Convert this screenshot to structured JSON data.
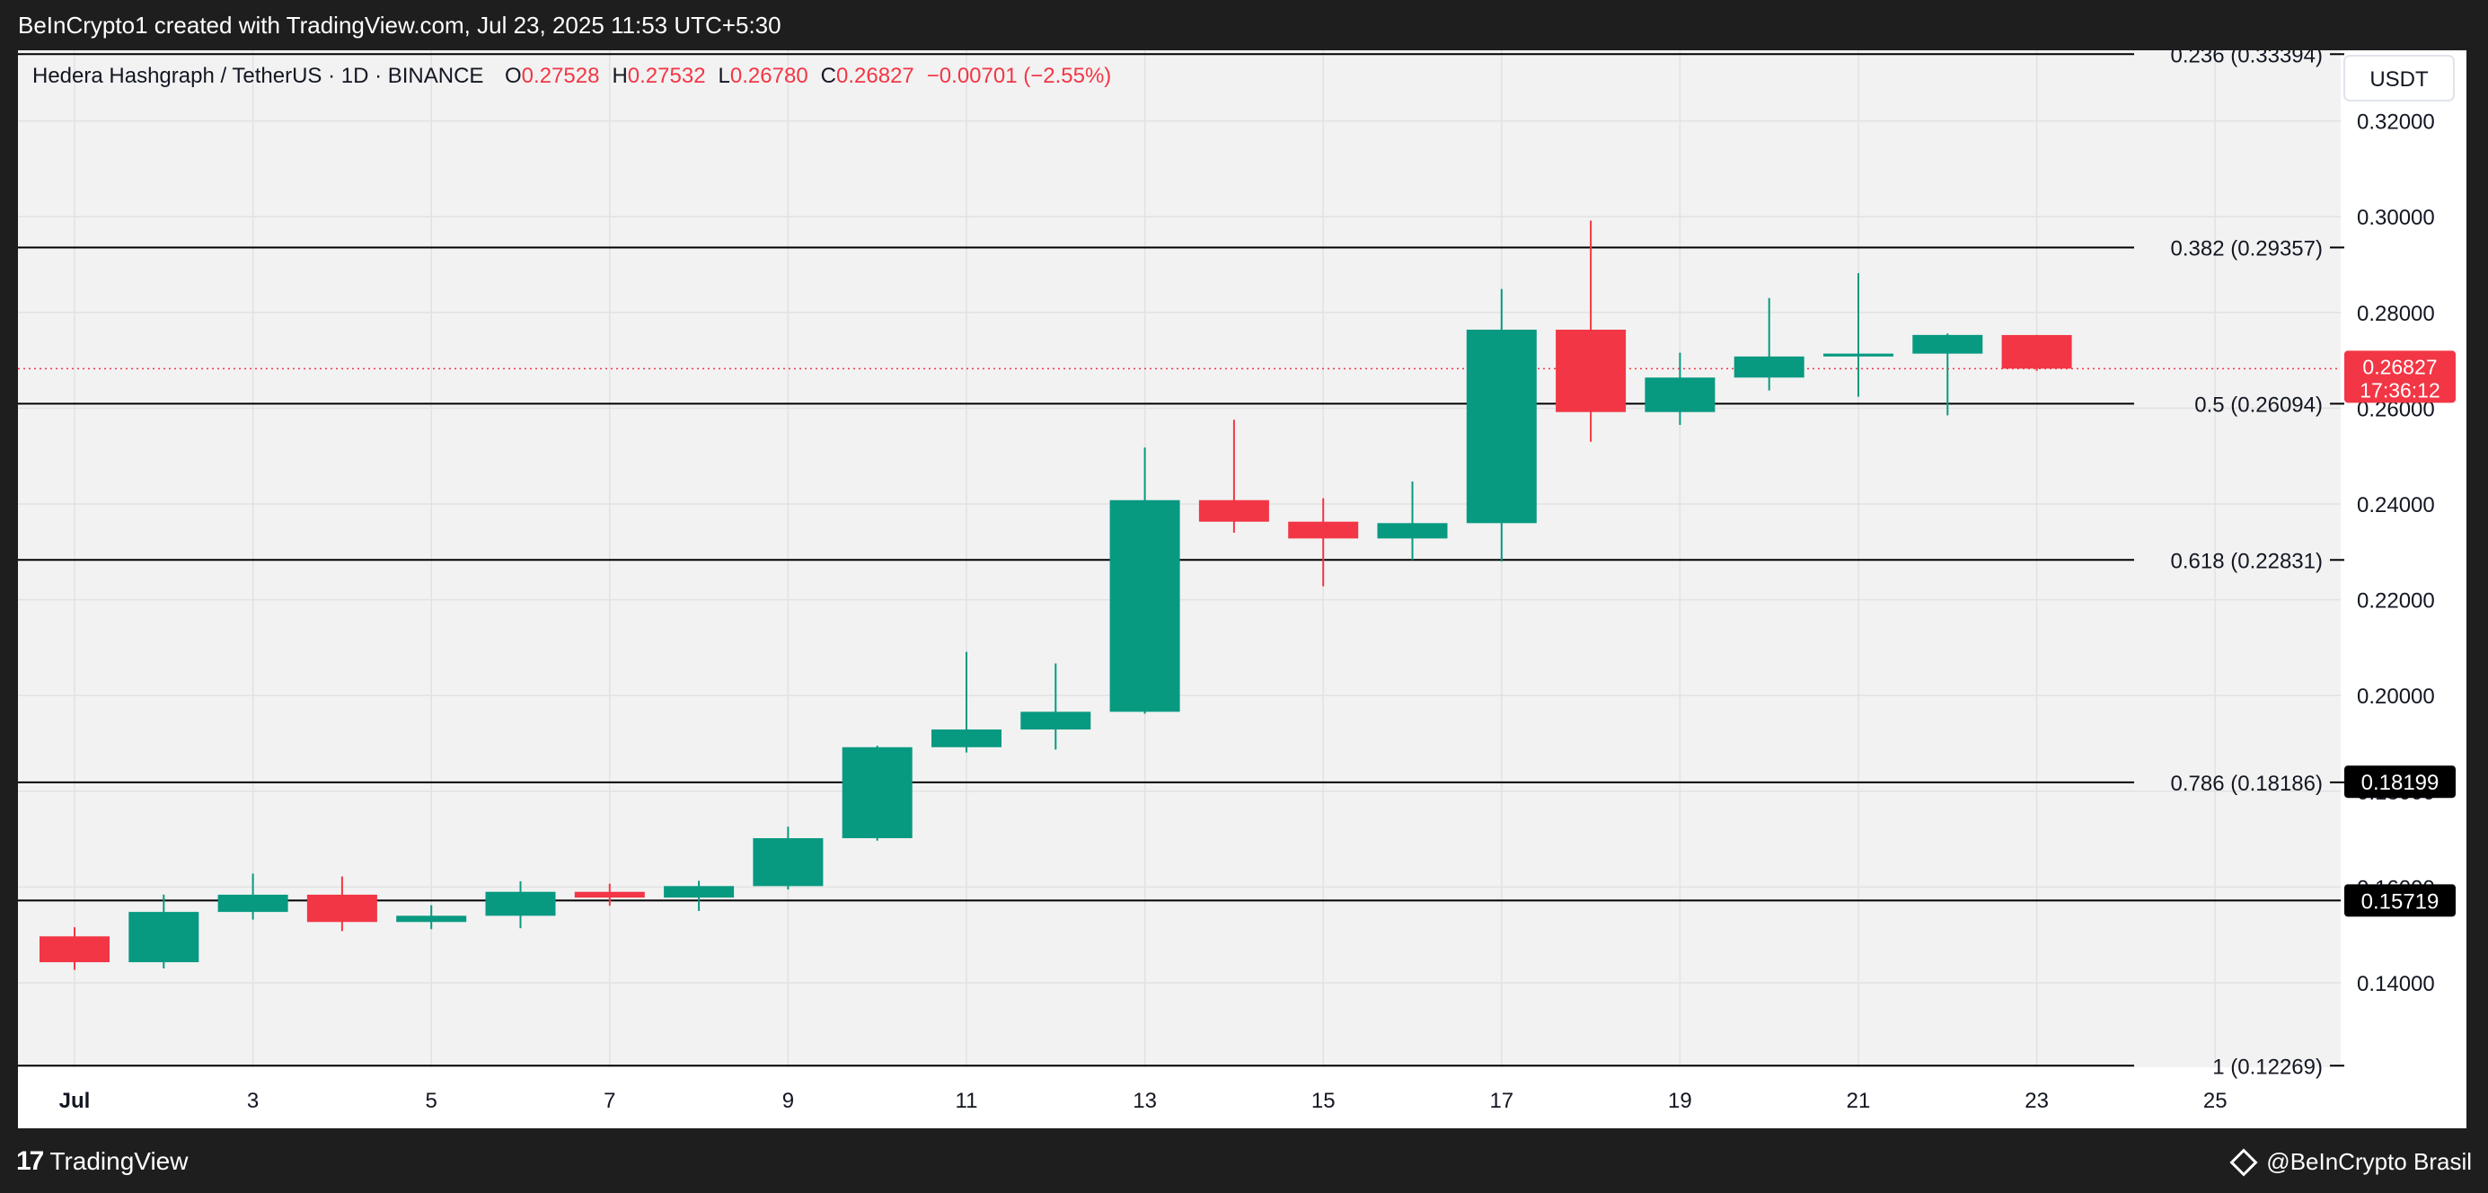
{
  "header": {
    "attribution": "BeInCrypto1 created with TradingView.com, Jul 23, 2025 11:53 UTC+5:30"
  },
  "legend": {
    "symbol": "Hedera Hashgraph / TetherUS · 1D · BINANCE",
    "o_label": "O",
    "o_value": "0.27528",
    "h_label": "H",
    "h_value": "0.27532",
    "l_label": "L",
    "l_value": "0.26780",
    "c_label": "C",
    "c_value": "0.26827",
    "change": "−0.00701 (−2.55%)"
  },
  "currency_label": "USDT",
  "footer": {
    "logo_text": "TradingView",
    "credit": "@BeInCrypto Brasil"
  },
  "colors": {
    "up": "#089981",
    "down": "#f23645",
    "plot_bg": "#f2f2f2",
    "grid": "#e2e2e2",
    "fib_line": "#000000"
  },
  "chart_data": {
    "type": "candlestick",
    "timeframe": "1D",
    "x_range": [
      "2025-06-30",
      "2025-07-25"
    ],
    "y_range": [
      0.12,
      0.3339
    ],
    "x_ticks": [
      {
        "date": "2025-07-01",
        "label": "Jul",
        "bold": true
      },
      {
        "date": "2025-07-03",
        "label": "3"
      },
      {
        "date": "2025-07-05",
        "label": "5"
      },
      {
        "date": "2025-07-07",
        "label": "7"
      },
      {
        "date": "2025-07-09",
        "label": "9"
      },
      {
        "date": "2025-07-11",
        "label": "11"
      },
      {
        "date": "2025-07-13",
        "label": "13"
      },
      {
        "date": "2025-07-15",
        "label": "15"
      },
      {
        "date": "2025-07-17",
        "label": "17"
      },
      {
        "date": "2025-07-19",
        "label": "19"
      },
      {
        "date": "2025-07-21",
        "label": "21"
      },
      {
        "date": "2025-07-23",
        "label": "23"
      },
      {
        "date": "2025-07-25",
        "label": "25"
      }
    ],
    "y_ticks": [
      {
        "value": 0.14,
        "label": "0.14000"
      },
      {
        "value": 0.16,
        "label": "0.16000"
      },
      {
        "value": 0.18,
        "label": "0.18000"
      },
      {
        "value": 0.2,
        "label": "0.20000"
      },
      {
        "value": 0.22,
        "label": "0.22000"
      },
      {
        "value": 0.24,
        "label": "0.24000"
      },
      {
        "value": 0.26,
        "label": "0.26000"
      },
      {
        "value": 0.28,
        "label": "0.28000"
      },
      {
        "value": 0.3,
        "label": "0.30000"
      },
      {
        "value": 0.32,
        "label": "0.32000"
      }
    ],
    "candles": [
      {
        "date": "2025-07-01",
        "open": 0.1497,
        "high": 0.1516,
        "low": 0.1427,
        "close": 0.1443
      },
      {
        "date": "2025-07-02",
        "open": 0.1443,
        "high": 0.1584,
        "low": 0.143,
        "close": 0.1548
      },
      {
        "date": "2025-07-03",
        "open": 0.1548,
        "high": 0.1628,
        "low": 0.1532,
        "close": 0.1584
      },
      {
        "date": "2025-07-04",
        "open": 0.1584,
        "high": 0.1622,
        "low": 0.1508,
        "close": 0.1527
      },
      {
        "date": "2025-07-05",
        "open": 0.1527,
        "high": 0.1562,
        "low": 0.1512,
        "close": 0.154
      },
      {
        "date": "2025-07-06",
        "open": 0.154,
        "high": 0.1612,
        "low": 0.1514,
        "close": 0.159
      },
      {
        "date": "2025-07-07",
        "open": 0.159,
        "high": 0.1607,
        "low": 0.1561,
        "close": 0.1578
      },
      {
        "date": "2025-07-08",
        "open": 0.1578,
        "high": 0.1613,
        "low": 0.155,
        "close": 0.1602
      },
      {
        "date": "2025-07-09",
        "open": 0.1602,
        "high": 0.1726,
        "low": 0.1595,
        "close": 0.1702
      },
      {
        "date": "2025-07-10",
        "open": 0.1702,
        "high": 0.1895,
        "low": 0.1697,
        "close": 0.1892
      },
      {
        "date": "2025-07-11",
        "open": 0.1892,
        "high": 0.2091,
        "low": 0.1881,
        "close": 0.1929
      },
      {
        "date": "2025-07-12",
        "open": 0.1929,
        "high": 0.2067,
        "low": 0.1887,
        "close": 0.1966
      },
      {
        "date": "2025-07-13",
        "open": 0.1966,
        "high": 0.2518,
        "low": 0.1962,
        "close": 0.2408
      },
      {
        "date": "2025-07-14",
        "open": 0.2408,
        "high": 0.2576,
        "low": 0.234,
        "close": 0.2363
      },
      {
        "date": "2025-07-15",
        "open": 0.2363,
        "high": 0.2412,
        "low": 0.2228,
        "close": 0.2328
      },
      {
        "date": "2025-07-16",
        "open": 0.2328,
        "high": 0.2447,
        "low": 0.2283,
        "close": 0.236
      },
      {
        "date": "2025-07-17",
        "open": 0.236,
        "high": 0.2849,
        "low": 0.228,
        "close": 0.2764
      },
      {
        "date": "2025-07-18",
        "open": 0.2764,
        "high": 0.2992,
        "low": 0.253,
        "close": 0.2592
      },
      {
        "date": "2025-07-19",
        "open": 0.2592,
        "high": 0.2716,
        "low": 0.2565,
        "close": 0.2664
      },
      {
        "date": "2025-07-20",
        "open": 0.2664,
        "high": 0.283,
        "low": 0.2637,
        "close": 0.2708
      },
      {
        "date": "2025-07-21",
        "open": 0.2708,
        "high": 0.2882,
        "low": 0.2624,
        "close": 0.2714
      },
      {
        "date": "2025-07-22",
        "open": 0.2714,
        "high": 0.2756,
        "low": 0.2585,
        "close": 0.2753
      },
      {
        "date": "2025-07-23",
        "open": 0.27528,
        "high": 0.27532,
        "low": 0.2678,
        "close": 0.26827
      }
    ],
    "fib_levels": [
      {
        "ratio": "0.236",
        "price": 0.33394,
        "label": "0.236 (0.33394)"
      },
      {
        "ratio": "0.382",
        "price": 0.29357,
        "label": "0.382 (0.29357)"
      },
      {
        "ratio": "0.5",
        "price": 0.26094,
        "label": "0.5 (0.26094)"
      },
      {
        "ratio": "0.618",
        "price": 0.22831,
        "label": "0.618 (0.22831)"
      },
      {
        "ratio": "0.786",
        "price": 0.18186,
        "label": "0.786 (0.18186)"
      },
      {
        "ratio": "1",
        "price": 0.12269,
        "label": "1 (0.12269)"
      }
    ],
    "price_badges": [
      {
        "price": 0.18199,
        "label": "0.18199",
        "style": "black"
      },
      {
        "price": 0.15719,
        "label": "0.15719",
        "style": "black"
      }
    ],
    "horizontal_lines": [
      {
        "price": 0.15719
      }
    ],
    "last_price": {
      "price": 0.26827,
      "label": "0.26827",
      "countdown": "17:36:12"
    },
    "grid": true
  }
}
